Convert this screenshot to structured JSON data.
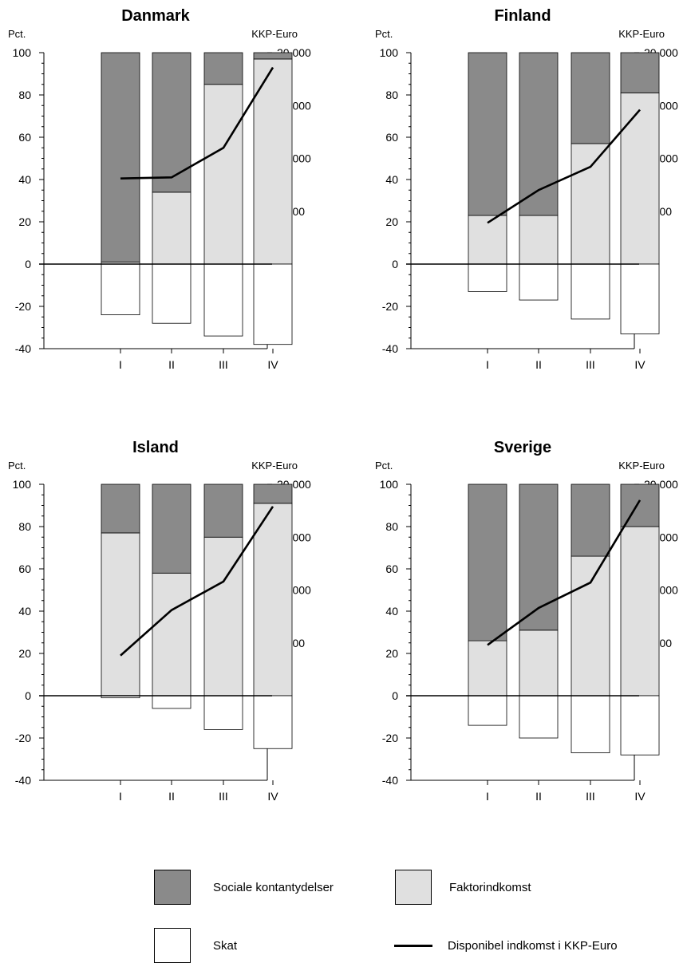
{
  "colors": {
    "sociale": "#8a8a8a",
    "faktor": "#e0e0e0",
    "skat": "#ffffff",
    "line": "#000000"
  },
  "legend": {
    "sociale": "Sociale kontantydelser",
    "faktor": "Faktorindkomst",
    "skat": "Skat",
    "line": "Disponibel indkomst i KKP-Euro"
  },
  "chart_data": [
    {
      "type": "bar",
      "title": "Danmark",
      "ylabel_left": "Pct.",
      "ylabel_right": "KKP-Euro",
      "categories": [
        "I",
        "II",
        "III",
        "IV"
      ],
      "left_ylim": [
        -40,
        100
      ],
      "left_ticks": [
        "100",
        "80",
        "60",
        "40",
        "20",
        "0",
        "-20",
        "-40"
      ],
      "right_ylim": [
        0,
        20000
      ],
      "right_ticks": [
        "20,000",
        "15,000",
        "10,000",
        "5,000",
        "0"
      ],
      "series": [
        {
          "key": "faktor",
          "name": "Faktorindkomst",
          "values": [
            1,
            34,
            85,
            97
          ]
        },
        {
          "key": "sociale",
          "name": "Sociale kontantydelser",
          "values": [
            99,
            66,
            15,
            3
          ]
        },
        {
          "key": "skat",
          "name": "Skat",
          "values": [
            -24,
            -28,
            -34,
            -38
          ]
        },
        {
          "key": "line",
          "name": "Disponibel indkomst i KKP-Euro",
          "axis": "right",
          "values": [
            8100,
            8200,
            11000,
            18600
          ]
        }
      ]
    },
    {
      "type": "bar",
      "title": "Finland",
      "ylabel_left": "Pct.",
      "ylabel_right": "KKP-Euro",
      "categories": [
        "I",
        "II",
        "III",
        "IV"
      ],
      "left_ylim": [
        -40,
        100
      ],
      "left_ticks": [
        "100",
        "80",
        "60",
        "40",
        "20",
        "0",
        "-20",
        "-40"
      ],
      "right_ylim": [
        0,
        20000
      ],
      "right_ticks": [
        "20,000",
        "15,000",
        "10,000",
        "5,000",
        "0"
      ],
      "series": [
        {
          "key": "faktor",
          "name": "Faktorindkomst",
          "values": [
            23,
            23,
            57,
            81
          ]
        },
        {
          "key": "sociale",
          "name": "Sociale kontantydelser",
          "values": [
            77,
            77,
            43,
            19
          ]
        },
        {
          "key": "skat",
          "name": "Skat",
          "values": [
            -13,
            -17,
            -26,
            -33
          ]
        },
        {
          "key": "line",
          "name": "Disponibel indkomst i KKP-Euro",
          "axis": "right",
          "values": [
            3900,
            7000,
            9200,
            14600
          ]
        }
      ]
    },
    {
      "type": "bar",
      "title": "Island",
      "ylabel_left": "Pct.",
      "ylabel_right": "KKP-Euro",
      "categories": [
        "I",
        "II",
        "III",
        "IV"
      ],
      "left_ylim": [
        -40,
        100
      ],
      "left_ticks": [
        "100",
        "80",
        "60",
        "40",
        "20",
        "0",
        "-20",
        "-40"
      ],
      "right_ylim": [
        0,
        20000
      ],
      "right_ticks": [
        "20,000",
        "15,000",
        "10,000",
        "5,000",
        "0"
      ],
      "series": [
        {
          "key": "faktor",
          "name": "Faktorindkomst",
          "values": [
            77,
            58,
            75,
            91
          ]
        },
        {
          "key": "sociale",
          "name": "Sociale kontantydelser",
          "values": [
            23,
            42,
            25,
            9
          ]
        },
        {
          "key": "skat",
          "name": "Skat",
          "values": [
            -1,
            -6,
            -16,
            -25
          ]
        },
        {
          "key": "line",
          "name": "Disponibel indkomst i KKP-Euro",
          "axis": "right",
          "values": [
            3800,
            8100,
            10800,
            17900
          ]
        }
      ]
    },
    {
      "type": "bar",
      "title": "Sverige",
      "ylabel_left": "Pct.",
      "ylabel_right": "KKP-Euro",
      "categories": [
        "I",
        "II",
        "III",
        "IV"
      ],
      "left_ylim": [
        -40,
        100
      ],
      "left_ticks": [
        "100",
        "80",
        "60",
        "40",
        "20",
        "0",
        "-20",
        "-40"
      ],
      "right_ylim": [
        0,
        20000
      ],
      "right_ticks": [
        "20,000",
        "15,000",
        "10,000",
        "5,000",
        "0"
      ],
      "series": [
        {
          "key": "faktor",
          "name": "Faktorindkomst",
          "values": [
            26,
            31,
            66,
            80
          ]
        },
        {
          "key": "sociale",
          "name": "Sociale kontantydelser",
          "values": [
            74,
            69,
            34,
            20
          ]
        },
        {
          "key": "skat",
          "name": "Skat",
          "values": [
            -14,
            -20,
            -27,
            -28
          ]
        },
        {
          "key": "line",
          "name": "Disponibel indkomst i KKP-Euro",
          "axis": "right",
          "values": [
            4800,
            8300,
            10700,
            18500
          ]
        }
      ]
    }
  ]
}
